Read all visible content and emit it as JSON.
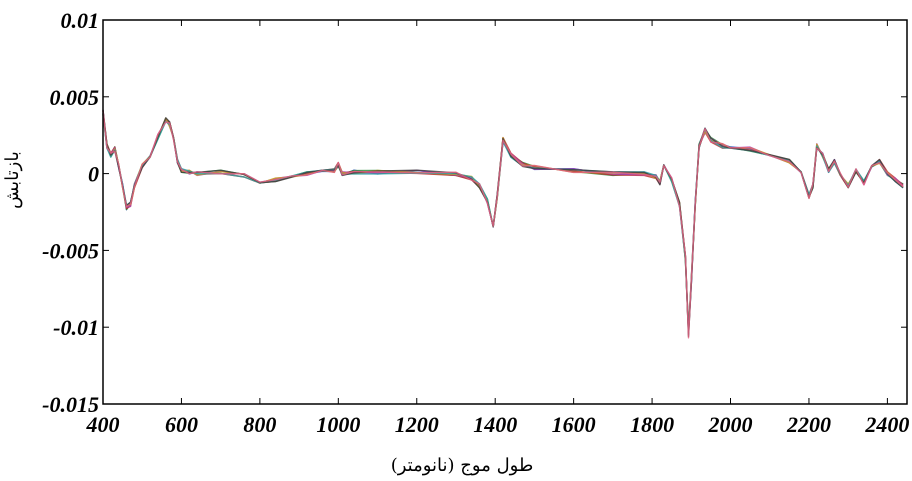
{
  "chart_data": {
    "type": "line",
    "xlabel": "طول موج (نانومتر)",
    "ylabel": "بازتابش",
    "xlim": [
      400,
      2450
    ],
    "ylim": [
      -0.015,
      0.01
    ],
    "x_ticks": [
      400,
      600,
      800,
      1000,
      1200,
      1400,
      1600,
      1800,
      2000,
      2200,
      2400
    ],
    "x_tick_labels": [
      "400",
      "600",
      "800",
      "1000",
      "1200",
      "1400",
      "1600",
      "1800",
      "2000",
      "2200",
      "2400"
    ],
    "y_ticks": [
      0.01,
      0.005,
      0,
      -0.005,
      -0.01,
      -0.015
    ],
    "y_tick_labels": [
      "0.01",
      "0.005",
      "0",
      "-0.005",
      "-0.01",
      "-0.015"
    ],
    "grid": false,
    "legend": "none",
    "series_count_note": "many overlapping spectra",
    "series_colors": [
      "#1f3fbf",
      "#2f8f3f",
      "#c03030",
      "#b03fb0",
      "#c8a020",
      "#2fa0a0",
      "#404040",
      "#e06080"
    ],
    "x": [
      400,
      410,
      420,
      430,
      440,
      450,
      460,
      470,
      480,
      500,
      520,
      540,
      560,
      570,
      580,
      590,
      600,
      620,
      640,
      700,
      760,
      800,
      840,
      880,
      920,
      960,
      990,
      1000,
      1010,
      1040,
      1100,
      1200,
      1300,
      1340,
      1360,
      1380,
      1395,
      1405,
      1420,
      1440,
      1470,
      1500,
      1600,
      1700,
      1780,
      1810,
      1820,
      1830,
      1850,
      1870,
      1885,
      1893,
      1900,
      1910,
      1920,
      1935,
      1950,
      1980,
      2000,
      2050,
      2100,
      2150,
      2180,
      2200,
      2210,
      2220,
      2235,
      2250,
      2265,
      2280,
      2300,
      2320,
      2340,
      2360,
      2380,
      2400,
      2420,
      2440
    ],
    "y": [
      0.004,
      0.0018,
      0.0012,
      0.0016,
      0.0005,
      -0.0008,
      -0.0022,
      -0.002,
      -0.0008,
      0.0005,
      0.0012,
      0.0024,
      0.0035,
      0.0032,
      0.0022,
      0.0008,
      0.0002,
      0.0001,
      0.0,
      0.0001,
      -0.0001,
      -0.0005,
      -0.0004,
      -0.0002,
      0.0,
      0.0001,
      0.0002,
      0.0006,
      0.0,
      0.0001,
      0.0001,
      0.0001,
      0.0,
      -0.0003,
      -0.0008,
      -0.0018,
      -0.0035,
      -0.0015,
      0.0022,
      0.0012,
      0.0006,
      0.0004,
      0.0002,
      0.0,
      0.0,
      -0.0002,
      -0.0006,
      0.0006,
      -0.0004,
      -0.002,
      -0.0055,
      -0.0105,
      -0.007,
      -0.002,
      0.0018,
      0.0028,
      0.0022,
      0.0018,
      0.0018,
      0.0016,
      0.0012,
      0.0008,
      0.0,
      -0.0015,
      -0.0008,
      0.0018,
      0.0012,
      0.0002,
      0.0008,
      0.0,
      -0.0008,
      0.0002,
      -0.0006,
      0.0004,
      0.0008,
      0.0,
      -0.0004,
      -0.0008
    ]
  }
}
